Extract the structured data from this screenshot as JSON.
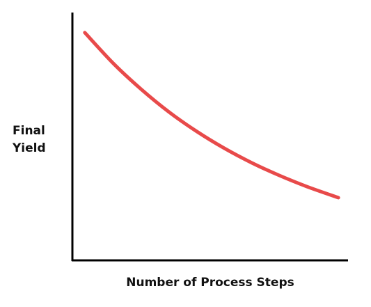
{
  "chart_data": {
    "type": "line",
    "x_label": "Number of Process Steps",
    "y_label": "Final Yield",
    "xlim": [
      0,
      100
    ],
    "ylim": [
      0,
      100
    ],
    "x": [
      4.5,
      15,
      25,
      35,
      45,
      55,
      65,
      75,
      85,
      96.5
    ],
    "values": [
      91.9,
      79.3,
      69.0,
      59.9,
      52.1,
      45.3,
      39.4,
      34.3,
      29.8,
      25.3
    ],
    "color": "#e84a4a"
  }
}
